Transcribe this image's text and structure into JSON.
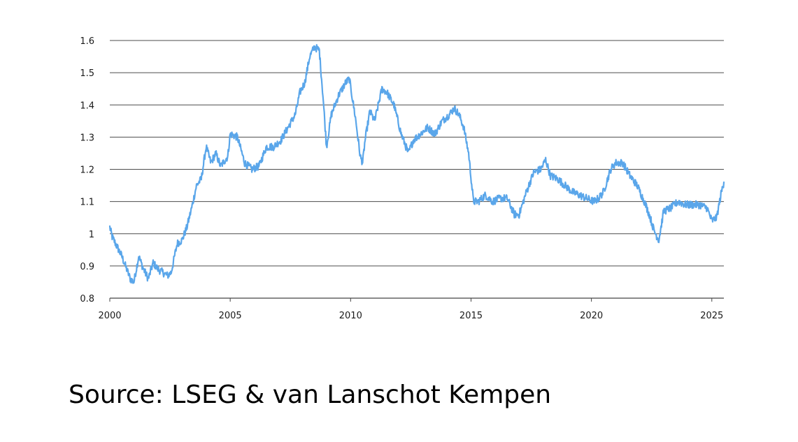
{
  "chart_data": {
    "type": "line",
    "title": "",
    "xlabel": "",
    "ylabel": "",
    "xlim": [
      2000,
      2025.5
    ],
    "ylim": [
      0.8,
      1.6
    ],
    "x_ticks": [
      "2000",
      "2005",
      "2010",
      "2015",
      "2020",
      "2025"
    ],
    "y_ticks": [
      "0.8",
      "0.9",
      "1",
      "1.1",
      "1.2",
      "1.3",
      "1.4",
      "1.5",
      "1.6"
    ],
    "grid": "horizontal",
    "legend": "none",
    "series": [
      {
        "color": "#5aa6ea",
        "x": [
          2000,
          2000.1,
          2000.3,
          2000.5,
          2000.7,
          2000.85,
          2001.0,
          2001.2,
          2001.4,
          2001.6,
          2001.8,
          2002.0,
          2002.2,
          2002.4,
          2002.55,
          2002.8,
          2003.0,
          2003.2,
          2003.4,
          2003.6,
          2003.8,
          2004.0,
          2004.2,
          2004.4,
          2004.6,
          2004.9,
          2005.0,
          2005.3,
          2005.6,
          2005.9,
          2006.2,
          2006.5,
          2006.8,
          2007.1,
          2007.4,
          2007.7,
          2007.9,
          2008.1,
          2008.3,
          2008.5,
          2008.7,
          2008.85,
          2009.0,
          2009.2,
          2009.5,
          2009.8,
          2009.95,
          2010.2,
          2010.4,
          2010.5,
          2010.6,
          2010.8,
          2011.0,
          2011.3,
          2011.5,
          2011.8,
          2012.1,
          2012.4,
          2012.6,
          2012.9,
          2013.2,
          2013.5,
          2013.8,
          2014.1,
          2014.3,
          2014.5,
          2014.7,
          2014.9,
          2015.1,
          2015.3,
          2015.6,
          2015.9,
          2016.2,
          2016.5,
          2016.8,
          2017.0,
          2017.3,
          2017.6,
          2017.9,
          2018.1,
          2018.3,
          2018.6,
          2018.9,
          2019.2,
          2019.5,
          2019.8,
          2020.1,
          2020.3,
          2020.5,
          2020.8,
          2021.0,
          2021.3,
          2021.6,
          2021.9,
          2022.2,
          2022.4,
          2022.6,
          2022.8,
          2023.0,
          2023.3,
          2023.6,
          2023.9,
          2024.2,
          2024.5,
          2024.8,
          2025.0,
          2025.2,
          2025.4,
          2025.5
        ],
        "values": [
          1.02,
          0.99,
          0.96,
          0.93,
          0.89,
          0.86,
          0.85,
          0.93,
          0.89,
          0.86,
          0.91,
          0.89,
          0.88,
          0.87,
          0.88,
          0.97,
          0.98,
          1.02,
          1.08,
          1.15,
          1.17,
          1.27,
          1.22,
          1.25,
          1.21,
          1.24,
          1.31,
          1.3,
          1.22,
          1.2,
          1.21,
          1.27,
          1.27,
          1.29,
          1.33,
          1.37,
          1.44,
          1.47,
          1.55,
          1.58,
          1.57,
          1.43,
          1.27,
          1.37,
          1.43,
          1.47,
          1.48,
          1.36,
          1.24,
          1.22,
          1.29,
          1.38,
          1.35,
          1.45,
          1.44,
          1.4,
          1.31,
          1.25,
          1.29,
          1.31,
          1.33,
          1.31,
          1.35,
          1.37,
          1.39,
          1.37,
          1.33,
          1.25,
          1.1,
          1.1,
          1.12,
          1.1,
          1.11,
          1.11,
          1.06,
          1.06,
          1.13,
          1.19,
          1.2,
          1.23,
          1.18,
          1.17,
          1.15,
          1.13,
          1.12,
          1.11,
          1.1,
          1.11,
          1.13,
          1.2,
          1.22,
          1.22,
          1.18,
          1.15,
          1.1,
          1.06,
          1.01,
          0.98,
          1.07,
          1.08,
          1.1,
          1.09,
          1.09,
          1.09,
          1.08,
          1.04,
          1.05,
          1.13,
          1.16
        ]
      }
    ]
  },
  "source_text": "Source: LSEG & van Lanschot Kempen"
}
